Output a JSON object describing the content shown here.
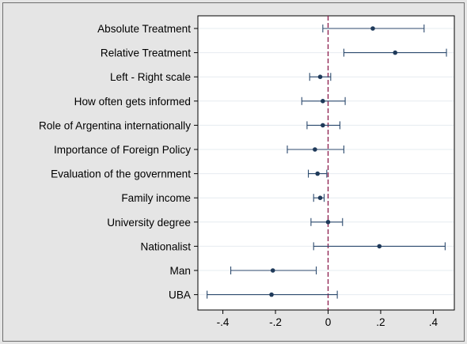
{
  "chart_data": {
    "type": "scatter",
    "variables": [
      "Absolute Treatment",
      "Relative Treatment",
      "Left - Right scale",
      "How often gets informed",
      "Role of Argentina internationally",
      "Importance of Foreign Policy",
      "Evaluation of the government",
      "Family income",
      "University degree",
      "Nationalist",
      "Man",
      "UBA"
    ],
    "estimates": [
      0.17,
      0.255,
      -0.03,
      -0.02,
      -0.02,
      -0.05,
      -0.04,
      -0.03,
      0.0,
      0.195,
      -0.21,
      -0.215
    ],
    "ci_low": [
      -0.02,
      0.06,
      -0.07,
      -0.1,
      -0.08,
      -0.155,
      -0.075,
      -0.055,
      -0.065,
      -0.055,
      -0.37,
      -0.46
    ],
    "ci_high": [
      0.365,
      0.45,
      0.01,
      0.065,
      0.045,
      0.06,
      -0.005,
      -0.015,
      0.055,
      0.445,
      -0.045,
      0.035
    ],
    "x_ticks": [
      -0.4,
      -0.2,
      0,
      0.2,
      0.4
    ],
    "x_tick_labels": [
      "-.4",
      "-.2",
      "0",
      ".2",
      ".4"
    ],
    "xlim": [
      -0.495,
      0.48
    ],
    "reference_line": {
      "x": 0,
      "style": "dashed",
      "color": "#8b1a4a"
    },
    "grid": true,
    "colors": {
      "outer_background": "#e5e5e5",
      "plot_background": "#ffffff",
      "marker": "#1f3a5a",
      "ci_line": "#2c4a6e",
      "grid": "#e6ecf0",
      "text": "#000000"
    }
  }
}
